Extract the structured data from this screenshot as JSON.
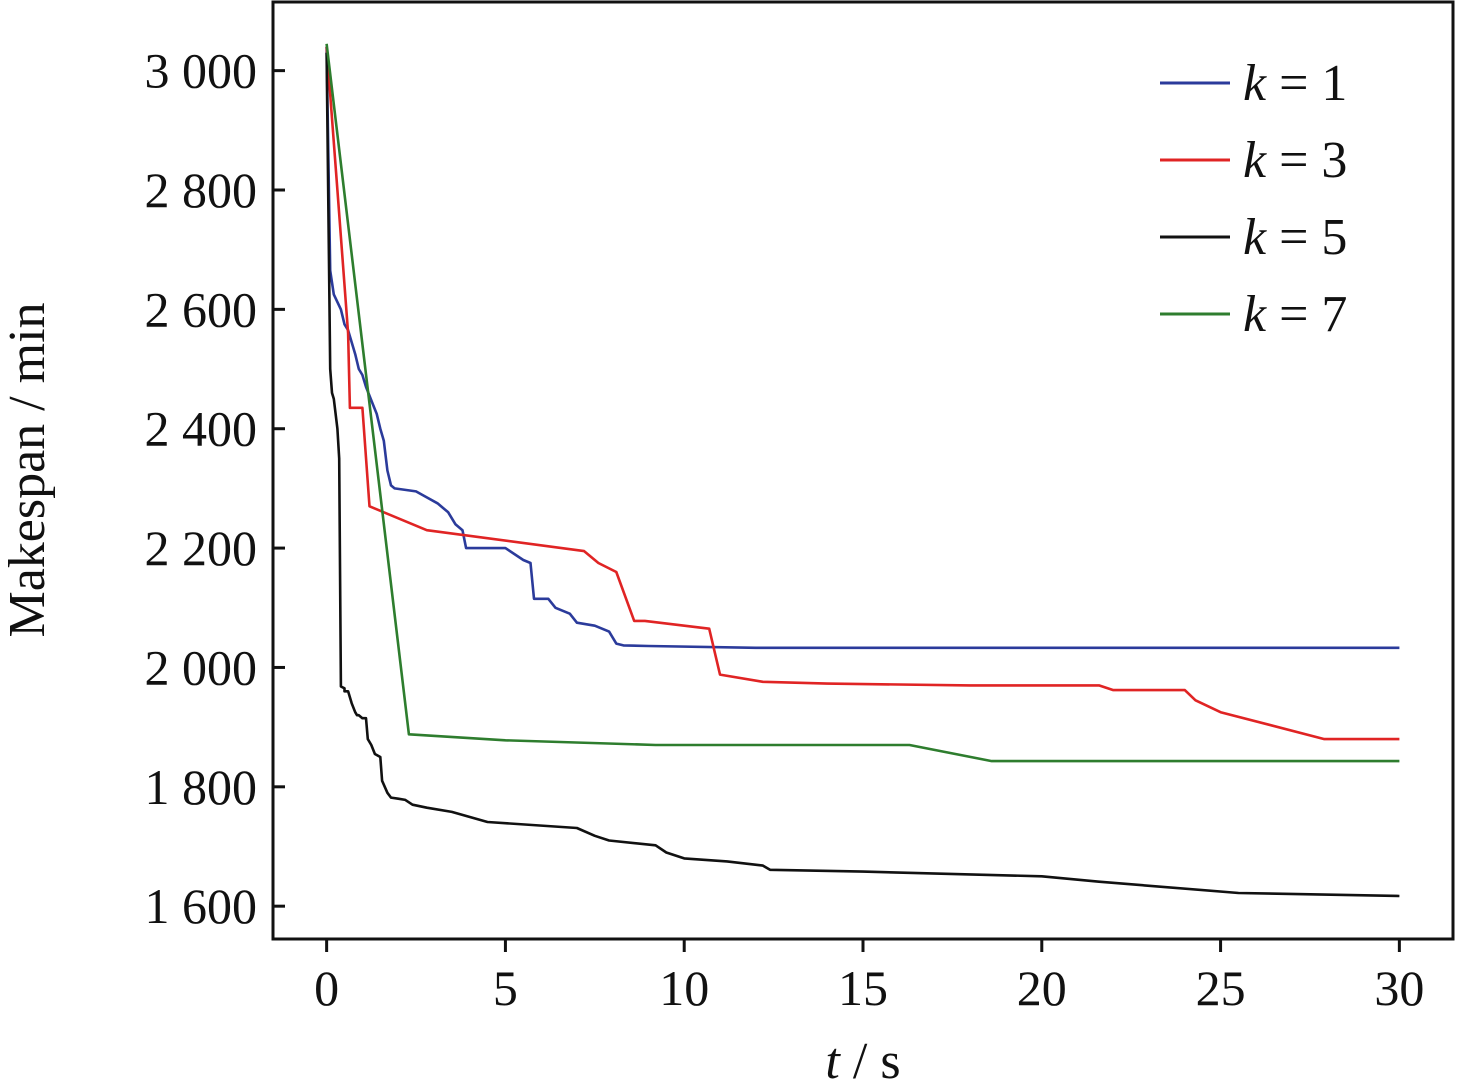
{
  "chart_data": {
    "type": "line",
    "title": "",
    "xlabel": {
      "var": "t",
      "unit": " / s"
    },
    "ylabel": "Makespan / min",
    "xlim": [
      -1.5,
      31.5
    ],
    "ylim": [
      1545,
      3115
    ],
    "xticks": [
      0,
      5,
      10,
      15,
      20,
      25,
      30
    ],
    "xtick_labels": [
      "0",
      "5",
      "10",
      "15",
      "20",
      "25",
      "30"
    ],
    "yticks": [
      1600,
      1800,
      2000,
      2200,
      2400,
      2600,
      2800,
      3000
    ],
    "ytick_labels": [
      "1 600",
      "1 800",
      "2 000",
      "2 200",
      "2 400",
      "2 600",
      "2 800",
      "3 000"
    ],
    "grid": false,
    "legend_position": "top-right",
    "series": [
      {
        "name": "k = 1",
        "legend_var": "k",
        "legend_rest": " = 1",
        "color": "#2b3b9b",
        "step": false,
        "points": [
          [
            0,
            3040
          ],
          [
            0.1,
            2665
          ],
          [
            0.2,
            2625
          ],
          [
            0.4,
            2600
          ],
          [
            0.5,
            2575
          ],
          [
            0.6,
            2565
          ],
          [
            0.8,
            2525
          ],
          [
            0.9,
            2500
          ],
          [
            1.0,
            2490
          ],
          [
            1.1,
            2470
          ],
          [
            1.3,
            2440
          ],
          [
            1.4,
            2425
          ],
          [
            1.5,
            2400
          ],
          [
            1.6,
            2380
          ],
          [
            1.7,
            2330
          ],
          [
            1.8,
            2305
          ],
          [
            1.9,
            2300
          ],
          [
            2.5,
            2295
          ],
          [
            2.8,
            2285
          ],
          [
            3.1,
            2275
          ],
          [
            3.4,
            2260
          ],
          [
            3.6,
            2240
          ],
          [
            3.8,
            2230
          ],
          [
            3.9,
            2200
          ],
          [
            5.0,
            2200
          ],
          [
            5.5,
            2180
          ],
          [
            5.7,
            2175
          ],
          [
            5.8,
            2115
          ],
          [
            6.2,
            2115
          ],
          [
            6.4,
            2100
          ],
          [
            6.8,
            2090
          ],
          [
            7.0,
            2075
          ],
          [
            7.5,
            2070
          ],
          [
            7.9,
            2060
          ],
          [
            8.1,
            2040
          ],
          [
            8.3,
            2037
          ],
          [
            9.0,
            2036
          ],
          [
            12.0,
            2033
          ],
          [
            30,
            2033
          ]
        ]
      },
      {
        "name": "k = 3",
        "legend_var": "k",
        "legend_rest": " = 3",
        "color": "#e02424",
        "step": false,
        "points": [
          [
            0,
            3040
          ],
          [
            0.3,
            2800
          ],
          [
            0.6,
            2560
          ],
          [
            0.65,
            2435
          ],
          [
            1.0,
            2435
          ],
          [
            1.2,
            2270
          ],
          [
            2.8,
            2230
          ],
          [
            7.2,
            2195
          ],
          [
            7.6,
            2175
          ],
          [
            8.1,
            2160
          ],
          [
            8.6,
            2078
          ],
          [
            8.9,
            2078
          ],
          [
            10.7,
            2065
          ],
          [
            11.0,
            1988
          ],
          [
            12.2,
            1976
          ],
          [
            14.0,
            1973
          ],
          [
            18.0,
            1970
          ],
          [
            21.6,
            1970
          ],
          [
            22.0,
            1962
          ],
          [
            24.0,
            1962
          ],
          [
            24.3,
            1945
          ],
          [
            25.0,
            1925
          ],
          [
            27.9,
            1880
          ],
          [
            30,
            1880
          ]
        ]
      },
      {
        "name": "k = 5",
        "legend_var": "k",
        "legend_rest": " = 5",
        "color": "#111111",
        "step": false,
        "points": [
          [
            0,
            3030
          ],
          [
            0.1,
            2500
          ],
          [
            0.15,
            2460
          ],
          [
            0.2,
            2450
          ],
          [
            0.3,
            2400
          ],
          [
            0.35,
            2350
          ],
          [
            0.4,
            1968
          ],
          [
            0.5,
            1965
          ],
          [
            0.5,
            1960
          ],
          [
            0.6,
            1960
          ],
          [
            0.7,
            1940
          ],
          [
            0.8,
            1925
          ],
          [
            0.85,
            1920
          ],
          [
            0.9,
            1920
          ],
          [
            1.0,
            1915
          ],
          [
            1.1,
            1915
          ],
          [
            1.15,
            1880
          ],
          [
            1.25,
            1870
          ],
          [
            1.35,
            1855
          ],
          [
            1.5,
            1850
          ],
          [
            1.55,
            1810
          ],
          [
            1.7,
            1790
          ],
          [
            1.8,
            1782
          ],
          [
            2.0,
            1780
          ],
          [
            2.2,
            1778
          ],
          [
            2.4,
            1770
          ],
          [
            2.8,
            1765
          ],
          [
            3.5,
            1758
          ],
          [
            4.5,
            1741
          ],
          [
            7.0,
            1731
          ],
          [
            7.5,
            1718
          ],
          [
            7.9,
            1710
          ],
          [
            9.2,
            1702
          ],
          [
            9.5,
            1690
          ],
          [
            10.0,
            1680
          ],
          [
            11.2,
            1675
          ],
          [
            12.2,
            1668
          ],
          [
            12.4,
            1661
          ],
          [
            15.0,
            1658
          ],
          [
            20.0,
            1650
          ],
          [
            21.6,
            1641
          ],
          [
            25.5,
            1622
          ],
          [
            30,
            1617
          ]
        ]
      },
      {
        "name": "k = 7",
        "legend_var": "k",
        "legend_rest": " = 7",
        "color": "#2e7d2e",
        "step": false,
        "points": [
          [
            0,
            3045
          ],
          [
            2.3,
            1888
          ],
          [
            5.0,
            1878
          ],
          [
            9.2,
            1870
          ],
          [
            16.3,
            1870
          ],
          [
            18.6,
            1843
          ],
          [
            30,
            1843
          ]
        ]
      }
    ]
  }
}
